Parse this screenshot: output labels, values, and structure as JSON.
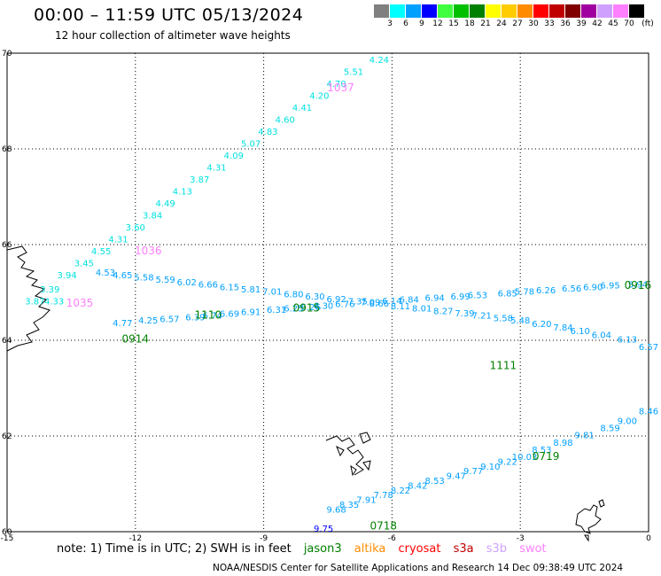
{
  "header": {
    "title": "00:00 – 11:59 UTC 05/13/2024",
    "subtitle": "12 hour collection of altimeter wave heights"
  },
  "color_scale": {
    "unit": "(ft)",
    "bins": [
      {
        "label": "3",
        "color": "#808080"
      },
      {
        "label": "6",
        "color": "#00ffff"
      },
      {
        "label": "9",
        "color": "#00a0ff"
      },
      {
        "label": "12",
        "color": "#0000ff"
      },
      {
        "label": "15",
        "color": "#40ff40"
      },
      {
        "label": "18",
        "color": "#00c000"
      },
      {
        "label": "21",
        "color": "#008000"
      },
      {
        "label": "24",
        "color": "#ffff00"
      },
      {
        "label": "27",
        "color": "#ffcc00"
      },
      {
        "label": "30",
        "color": "#ff8c00"
      },
      {
        "label": "33",
        "color": "#ff0000"
      },
      {
        "label": "36",
        "color": "#c00000"
      },
      {
        "label": "39",
        "color": "#800000"
      },
      {
        "label": "42",
        "color": "#a000a0"
      },
      {
        "label": "45",
        "color": "#d0a0ff"
      },
      {
        "label": "70",
        "color": "#ff80ff"
      },
      {
        "label": "",
        "color": "#000000"
      }
    ]
  },
  "chart_data": {
    "type": "scatter",
    "xlim": [
      -15,
      0
    ],
    "ylim": [
      60,
      70
    ],
    "x_ticks": [
      "-15",
      "-12",
      "-9",
      "-6",
      "-3",
      "0"
    ],
    "y_ticks": [
      "70",
      "68",
      "66",
      "64",
      "62",
      "60"
    ],
    "x_tick_values": [
      -15,
      -12,
      -9,
      -6,
      -3,
      0
    ],
    "y_tick_values": [
      70,
      68,
      66,
      64,
      62,
      60
    ],
    "grid": true,
    "tracks": [
      {
        "time": "1037",
        "time_color": "#ff80ff",
        "time_pos": [
          -7.2,
          69.2
        ],
        "label_color": "#00e0e0",
        "points": [
          [
            -6.3,
            69.8,
            "4.24"
          ],
          [
            -6.9,
            69.55,
            "5.51"
          ],
          [
            -7.3,
            69.3,
            "4.70"
          ],
          [
            -7.7,
            69.05,
            "4.20"
          ],
          [
            -8.1,
            68.8,
            "4.41"
          ],
          [
            -8.5,
            68.55,
            "4.60"
          ],
          [
            -8.9,
            68.3,
            "4.83"
          ],
          [
            -9.3,
            68.05,
            "5.07"
          ],
          [
            -9.7,
            67.8,
            "4.09"
          ],
          [
            -10.1,
            67.55,
            "4.31"
          ],
          [
            -10.5,
            67.3,
            "3.87"
          ],
          [
            -10.9,
            67.05,
            "4.13"
          ],
          [
            -11.3,
            66.8,
            "4.49"
          ],
          [
            -11.6,
            66.55,
            "3.84"
          ],
          [
            -12.0,
            66.3,
            "3.60"
          ],
          [
            -12.4,
            66.05,
            "4.31"
          ],
          [
            -12.8,
            65.8,
            "4.55"
          ],
          [
            -13.2,
            65.55,
            "3.45"
          ],
          [
            -13.6,
            65.3,
            "3.94"
          ],
          [
            -14.0,
            65.0,
            "3.39"
          ],
          [
            -14.35,
            64.75,
            "3.87"
          ],
          [
            -13.9,
            64.75,
            "4.33"
          ]
        ],
        "extra_times": [
          [
            "1036",
            -11.7,
            65.8
          ],
          [
            "1035",
            -13.3,
            64.7
          ]
        ]
      },
      {
        "time": "0916",
        "time_color": "#008000",
        "time_pos": [
          -0.25,
          65.07
        ],
        "label_color": "#00a0ff",
        "points": [
          [
            -0.25,
            65.1,
            "5.94"
          ],
          [
            -0.9,
            65.08,
            "6.95"
          ],
          [
            -1.3,
            65.05,
            "6.90"
          ],
          [
            -1.8,
            65.02,
            "6.56"
          ],
          [
            -2.4,
            64.98,
            "6.26"
          ],
          [
            -2.9,
            64.95,
            "5.78"
          ],
          [
            -3.3,
            64.92,
            "6.85"
          ],
          [
            -4.0,
            64.88,
            "6.53"
          ],
          [
            -4.4,
            64.85,
            "6.99"
          ],
          [
            -5.0,
            64.82,
            "6.94"
          ],
          [
            -5.6,
            64.79,
            "6.84"
          ],
          [
            -6.0,
            64.76,
            "6.14"
          ],
          [
            -6.5,
            64.73,
            "7.09"
          ],
          [
            -7.1,
            64.69,
            "6.76"
          ],
          [
            -7.6,
            64.66,
            "6.30"
          ],
          [
            -7.9,
            64.63,
            "6.26"
          ],
          [
            -8.3,
            64.6,
            "6.25"
          ],
          [
            -8.7,
            64.57,
            "6.31"
          ],
          [
            -9.3,
            64.53,
            "6.91"
          ],
          [
            -9.8,
            64.49,
            "6.69"
          ],
          [
            -10.2,
            64.45,
            "6.74"
          ],
          [
            -10.6,
            64.42,
            "6.39"
          ],
          [
            -11.2,
            64.38,
            "6.57"
          ],
          [
            -11.7,
            64.35,
            "4.25"
          ],
          [
            -12.3,
            64.3,
            "4.77"
          ]
        ],
        "extra_times": [
          [
            "0915",
            -8.0,
            64.6
          ],
          [
            "1110",
            -10.3,
            64.45
          ],
          [
            "0914",
            -12.0,
            63.95
          ]
        ]
      },
      {
        "time": "1111",
        "time_color": "#008000",
        "time_pos": [
          -3.4,
          63.4
        ],
        "label_color": "#00a0ff",
        "points": [
          [
            0.0,
            63.8,
            "6.57"
          ],
          [
            -0.5,
            63.95,
            "6.13"
          ],
          [
            -1.1,
            64.05,
            "6.04"
          ],
          [
            -1.6,
            64.13,
            "6.10"
          ],
          [
            -2.0,
            64.2,
            "7.84"
          ],
          [
            -2.5,
            64.28,
            "6.20"
          ],
          [
            -3.0,
            64.35,
            "5.48"
          ],
          [
            -3.4,
            64.4,
            "5.58"
          ],
          [
            -3.9,
            64.45,
            "7.21"
          ],
          [
            -4.3,
            64.5,
            "7.39"
          ],
          [
            -4.8,
            64.55,
            "8.27"
          ],
          [
            -5.3,
            64.6,
            "8.01"
          ],
          [
            -5.8,
            64.65,
            "8.11"
          ],
          [
            -6.3,
            64.7,
            "8.66"
          ],
          [
            -6.8,
            64.75,
            "7.35"
          ],
          [
            -7.3,
            64.8,
            "6.92"
          ],
          [
            -7.8,
            64.85,
            "6.30"
          ],
          [
            -8.3,
            64.9,
            "6.80"
          ],
          [
            -8.8,
            64.95,
            "7.01"
          ],
          [
            -9.3,
            65.0,
            "5.81"
          ],
          [
            -9.8,
            65.05,
            "6.15"
          ],
          [
            -10.3,
            65.1,
            "6.66"
          ],
          [
            -10.8,
            65.15,
            "6.02"
          ],
          [
            -11.3,
            65.2,
            "5.59"
          ],
          [
            -11.8,
            65.25,
            "5.58"
          ],
          [
            -12.3,
            65.3,
            "4.65"
          ],
          [
            -12.7,
            65.35,
            "4.53"
          ]
        ]
      },
      {
        "time": "0719",
        "time_color": "#008000",
        "time_pos": [
          -2.4,
          61.5
        ],
        "label_color": "#00a0ff",
        "points": [
          [
            0.0,
            62.45,
            "8.46"
          ],
          [
            -0.5,
            62.25,
            "9.00"
          ],
          [
            -0.9,
            62.1,
            "8.59"
          ],
          [
            -1.5,
            61.95,
            "9.81"
          ],
          [
            -2.0,
            61.8,
            "8.98"
          ],
          [
            -2.5,
            61.65,
            "8.53"
          ],
          [
            -2.9,
            61.5,
            "10.03"
          ],
          [
            -3.3,
            61.4,
            "9.22"
          ],
          [
            -3.7,
            61.3,
            "9.10"
          ],
          [
            -4.1,
            61.2,
            "9.77"
          ],
          [
            -4.5,
            61.1,
            "9.47"
          ],
          [
            -5.0,
            61.0,
            "8.53"
          ],
          [
            -5.4,
            60.9,
            "8.42"
          ],
          [
            -5.8,
            60.8,
            "8.22"
          ],
          [
            -6.2,
            60.7,
            "7.78"
          ],
          [
            -6.6,
            60.6,
            "7.91"
          ],
          [
            -7.0,
            60.5,
            "8.35"
          ],
          [
            -7.3,
            60.4,
            "9.68"
          ]
        ],
        "extra_times": [
          [
            "0718",
            -6.2,
            60.05
          ]
        ]
      },
      {
        "time": "",
        "time_color": "#008000",
        "time_pos": [
          -7.6,
          60.0
        ],
        "label_color": "#0000ff",
        "points": [
          [
            -7.6,
            60.0,
            "9.75"
          ]
        ]
      }
    ]
  },
  "note": {
    "prefix": "note:  1) Time is in UTC; 2) SWH is in feet",
    "satellites": [
      {
        "name": "jason3",
        "color": "#008000"
      },
      {
        "name": "altika",
        "color": "#ff8c00"
      },
      {
        "name": "cryosat",
        "color": "#ff0000"
      },
      {
        "name": "s3a",
        "color": "#c00000"
      },
      {
        "name": "s3b",
        "color": "#d0a0ff"
      },
      {
        "name": "swot",
        "color": "#ff80ff"
      }
    ]
  },
  "credit": "NOAA/NESDIS Center for Satellite Applications and Research    14 Dec 09:38:49 UTC 2024"
}
